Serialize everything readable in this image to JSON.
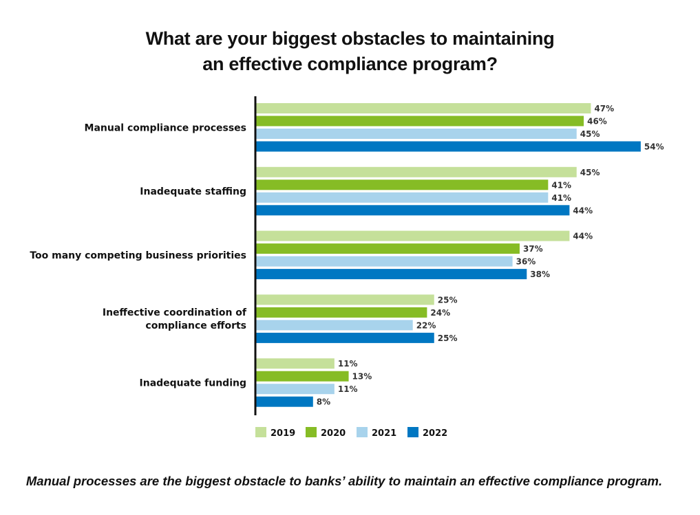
{
  "chart_data": {
    "type": "bar",
    "orientation": "horizontal",
    "title": "What are your biggest obstacles to maintaining an effective compliance program?",
    "title_lines": [
      "What are your biggest obstacles to maintaining",
      "an effective compliance program?"
    ],
    "categories": [
      "Manual compliance processes",
      "Inadequate staffing",
      "Too many competing business priorities",
      "Ineffective coordination of compliance efforts",
      "Inadequate funding"
    ],
    "category_lines": [
      [
        "Manual compliance processes"
      ],
      [
        "Inadequate staffing"
      ],
      [
        "Too many competing business priorities"
      ],
      [
        "Ineffective coordination of",
        "compliance efforts"
      ],
      [
        "Inadequate funding"
      ]
    ],
    "series": [
      {
        "name": "2019",
        "color": "#c5e09a",
        "values": [
          47,
          45,
          44,
          25,
          11
        ]
      },
      {
        "name": "2020",
        "color": "#86bc25",
        "values": [
          46,
          41,
          37,
          24,
          13
        ]
      },
      {
        "name": "2021",
        "color": "#a8d3ec",
        "values": [
          45,
          41,
          36,
          22,
          11
        ]
      },
      {
        "name": "2022",
        "color": "#0077c2",
        "values": [
          54,
          44,
          38,
          25,
          8
        ]
      }
    ],
    "value_suffix": "%",
    "xlabel": "",
    "ylabel": "",
    "xlim": [
      0,
      54
    ],
    "grid": false,
    "legend_position": "bottom",
    "caption": "Manual processes are the biggest obstacle to banks’ ability to maintain an effective compliance program."
  }
}
